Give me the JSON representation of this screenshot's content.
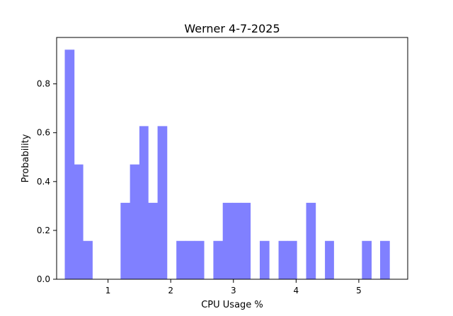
{
  "chart_data": {
    "type": "bar",
    "title": "Werner 4-7-2025",
    "xlabel": "CPU Usage %",
    "ylabel": "Probability",
    "xlim": [
      0.18,
      5.78
    ],
    "ylim": [
      0.0,
      0.99
    ],
    "xticks": [
      1,
      2,
      3,
      4,
      5
    ],
    "yticks": [
      0.0,
      0.2,
      0.4,
      0.6,
      0.8
    ],
    "ytick_labels": [
      "0.0",
      "0.2",
      "0.4",
      "0.6",
      "0.8"
    ],
    "bar_color": "#8080ff",
    "grid": false,
    "bins": [
      {
        "x0": 0.31,
        "x1": 0.46,
        "value": 0.94
      },
      {
        "x0": 0.46,
        "x1": 0.6,
        "value": 0.47
      },
      {
        "x0": 0.6,
        "x1": 0.75,
        "value": 0.157
      },
      {
        "x0": 1.2,
        "x1": 1.35,
        "value": 0.313
      },
      {
        "x0": 1.35,
        "x1": 1.5,
        "value": 0.47
      },
      {
        "x0": 1.5,
        "x1": 1.64,
        "value": 0.627
      },
      {
        "x0": 1.64,
        "x1": 1.79,
        "value": 0.313
      },
      {
        "x0": 1.79,
        "x1": 1.94,
        "value": 0.627
      },
      {
        "x0": 2.09,
        "x1": 2.24,
        "value": 0.157
      },
      {
        "x0": 2.24,
        "x1": 2.38,
        "value": 0.157
      },
      {
        "x0": 2.38,
        "x1": 2.53,
        "value": 0.157
      },
      {
        "x0": 2.68,
        "x1": 2.83,
        "value": 0.157
      },
      {
        "x0": 2.83,
        "x1": 2.98,
        "value": 0.313
      },
      {
        "x0": 2.98,
        "x1": 3.12,
        "value": 0.313
      },
      {
        "x0": 3.12,
        "x1": 3.27,
        "value": 0.313
      },
      {
        "x0": 3.42,
        "x1": 3.57,
        "value": 0.157
      },
      {
        "x0": 3.72,
        "x1": 3.86,
        "value": 0.157
      },
      {
        "x0": 3.86,
        "x1": 4.01,
        "value": 0.157
      },
      {
        "x0": 4.16,
        "x1": 4.31,
        "value": 0.313
      },
      {
        "x0": 4.46,
        "x1": 4.6,
        "value": 0.157
      },
      {
        "x0": 5.05,
        "x1": 5.2,
        "value": 0.157
      },
      {
        "x0": 5.34,
        "x1": 5.49,
        "value": 0.157
      }
    ]
  }
}
